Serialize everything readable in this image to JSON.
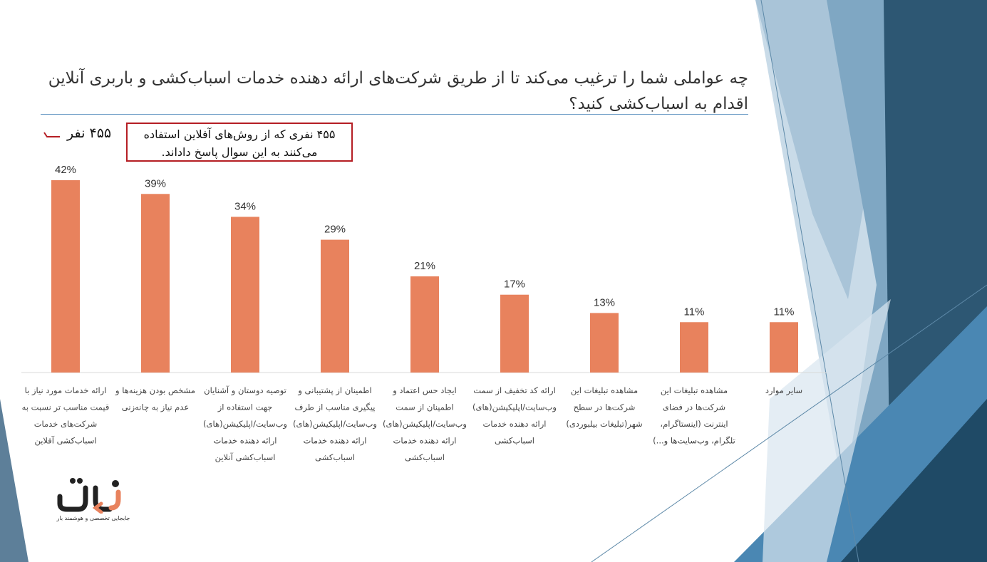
{
  "title": "چه عواملی شما را ترغیب می‌کند تا از طریق شرکت‌های ارائه دهنده خدمات اسباب‌کشی و باربری آنلاین اقدام به اسباب‌کشی کنید؟",
  "respondents": "۴۵۵ نفر",
  "note": "۴۵۵ نفری که از روش‌های آفلاین استفاده می‌کنند به این سوال پاسخ داداند.",
  "logo": {
    "tagline": "جابجایی تخصصی و هوشمند بار"
  },
  "colors": {
    "bar": "#e8825d",
    "accent_red": "#b51e24",
    "rule": "#6b9bc6"
  },
  "chart_data": {
    "type": "bar",
    "unit": "%",
    "categories": [
      [
        "ارائه خدمات مورد نیاز با",
        "قیمت مناسب تر نسبت به",
        "شرکت‌های خدمات",
        "اسباب‌کشی آفلاین"
      ],
      [
        "مشخص بودن هزینه‌ها و",
        "عدم نیاز به چانه‌زنی"
      ],
      [
        "توصیه دوستان و آشنایان",
        "جهت استفاده از",
        "وب‌سایت/اپلیکیشن(های)",
        "ارائه دهنده خدمات",
        "اسباب‌کشی آنلاین"
      ],
      [
        "اطمینان از پشتیبانی و",
        "پیگیری مناسب از طرف",
        "وب‌سایت/اپلیکیشن(های)",
        "ارائه دهنده خدمات",
        "اسباب‌کشی"
      ],
      [
        "ایجاد حس اعتماد و",
        "اطمینان از سمت",
        "وب‌سایت/اپلیکیشن(های)",
        "ارائه دهنده خدمات",
        "اسباب‌کشی"
      ],
      [
        "ارائه کد تخفیف از سمت",
        "وب‌سایت/اپلیکیشن(های)",
        "ارائه دهنده خدمات",
        "اسباب‌کشی"
      ],
      [
        "مشاهده تبلیغات این",
        "شرکت‌ها در سطح",
        "شهر(تبلیغات بیلبوردی)"
      ],
      [
        "مشاهده تبلیغات این",
        "شرکت‌ها در فضای",
        "اینترنت (اینستاگرام،",
        "تلگرام، وب‌سایت‌ها و...)"
      ],
      [
        "سایر موارد"
      ]
    ],
    "values": [
      42,
      39,
      34,
      29,
      21,
      17,
      13,
      11,
      11
    ],
    "labels": [
      "42%",
      "39%",
      "34%",
      "29%",
      "21%",
      "17%",
      "13%",
      "11%",
      "11%"
    ],
    "ylim": [
      0,
      42
    ],
    "grid": false,
    "legend": "none"
  }
}
